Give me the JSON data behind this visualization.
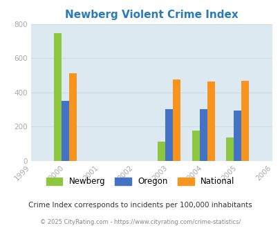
{
  "title": "Newberg Violent Crime Index",
  "years": [
    1999,
    2000,
    2001,
    2002,
    2003,
    2004,
    2005,
    2006
  ],
  "data_years": [
    2000,
    2003,
    2004,
    2005
  ],
  "newberg": [
    745,
    110,
    178,
    135
  ],
  "oregon": [
    350,
    300,
    303,
    295
  ],
  "national": [
    510,
    476,
    463,
    468
  ],
  "bar_colors": {
    "newberg": "#8dc63f",
    "oregon": "#4472c4",
    "national": "#f7941d"
  },
  "ylim": [
    0,
    800
  ],
  "yticks": [
    0,
    200,
    400,
    600,
    800
  ],
  "legend_labels": [
    "Newberg",
    "Oregon",
    "National"
  ],
  "subtitle": "Crime Index corresponds to incidents per 100,000 inhabitants",
  "footer": "© 2025 CityRating.com - https://www.cityrating.com/crime-statistics/",
  "title_color": "#2b7bba",
  "subtitle_color": "#333333",
  "footer_color": "#888888",
  "ytick_color": "#aaaaaa",
  "xtick_color": "#aaaaaa",
  "bg_color": "#dce9f0",
  "fig_bg": "#ffffff",
  "bar_width": 0.22,
  "grid_color": "#c8dce8"
}
